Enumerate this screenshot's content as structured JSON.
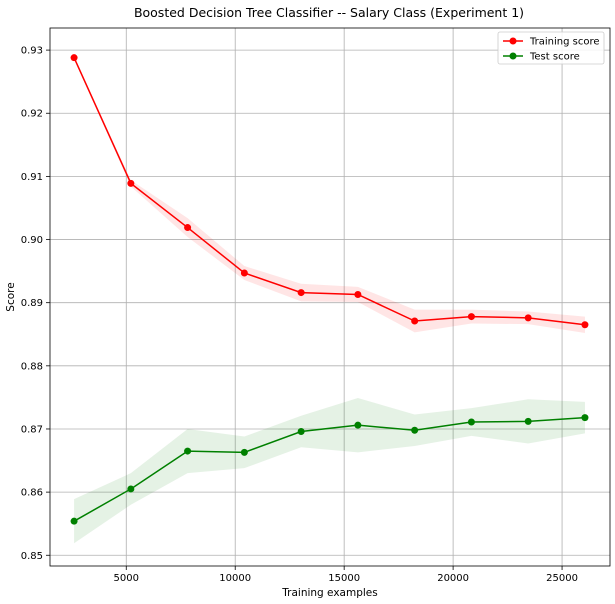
{
  "chart_data": {
    "type": "line",
    "title": "Boosted Decision Tree Classifier -- Salary Class (Experiment 1)",
    "xlabel": "Training examples",
    "ylabel": "Score",
    "xlim": [
      1500,
      27200
    ],
    "ylim": [
      0.8483,
      0.9335
    ],
    "xticks": [
      5000,
      10000,
      15000,
      20000,
      25000
    ],
    "xtick_labels": [
      "5000",
      "10000",
      "15000",
      "20000",
      "25000"
    ],
    "yticks": [
      0.85,
      0.86,
      0.87,
      0.88,
      0.89,
      0.9,
      0.91,
      0.92,
      0.93
    ],
    "ytick_labels": [
      "0.85",
      "0.86",
      "0.87",
      "0.88",
      "0.89",
      "0.90",
      "0.91",
      "0.92",
      "0.93"
    ],
    "grid": true,
    "legend_position": "top-right",
    "x": [
      2605,
      5210,
      7815,
      10420,
      13025,
      15630,
      18235,
      20840,
      23445,
      26050
    ],
    "series": [
      {
        "name": "Training score",
        "color": "#ff0000",
        "band_color": "#ff0000",
        "values": [
          0.9288,
          0.9089,
          0.9019,
          0.8947,
          0.8916,
          0.8913,
          0.8871,
          0.8878,
          0.8876,
          0.8865
        ],
        "std": [
          0.0002,
          0.0005,
          0.0015,
          0.0011,
          0.0014,
          0.0012,
          0.0018,
          0.0011,
          0.001,
          0.0013
        ]
      },
      {
        "name": "Test score",
        "color": "#008000",
        "band_color": "#008000",
        "values": [
          0.8554,
          0.8605,
          0.8665,
          0.8663,
          0.8696,
          0.8706,
          0.8698,
          0.8711,
          0.8712,
          0.8718
        ],
        "std": [
          0.0035,
          0.0025,
          0.0035,
          0.0025,
          0.0025,
          0.0043,
          0.0025,
          0.0022,
          0.0035,
          0.0025
        ]
      }
    ]
  }
}
